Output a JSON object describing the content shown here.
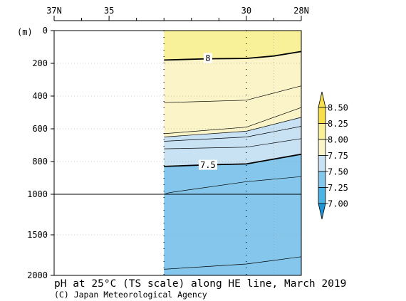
{
  "chart_data": {
    "type": "heatmap",
    "title": "pH at 25°C (TS scale) along HE line, March 2019",
    "credit": "(C) Japan Meteorological Agency",
    "ylabel": "(m)",
    "x_ticks": [
      {
        "lat": 37,
        "label": "37N"
      },
      {
        "lat": 35,
        "label": "35"
      },
      {
        "lat": 30,
        "label": "30"
      },
      {
        "lat": 28,
        "label": "28N"
      }
    ],
    "xlim": [
      37,
      28
    ],
    "y_ticks": [
      {
        "depth": 0,
        "label": "0"
      },
      {
        "depth": 200,
        "label": "200"
      },
      {
        "depth": 400,
        "label": "400"
      },
      {
        "depth": 600,
        "label": "600"
      },
      {
        "depth": 800,
        "label": "800"
      },
      {
        "depth": 1000,
        "label": "1000"
      },
      {
        "depth": 1500,
        "label": "1500"
      },
      {
        "depth": 2000,
        "label": "2000"
      }
    ],
    "ylim": [
      0,
      2000
    ],
    "y_scale": "piecewise linear: 0-1000 m upper section, 1000-2000 m compressed lower section",
    "data_lat_range": [
      33,
      28
    ],
    "station_lats": [
      33,
      30
    ],
    "colorbar": {
      "levels": [
        "8.50",
        "8.25",
        "8.00",
        "7.75",
        "7.50",
        "7.25",
        "7.00"
      ],
      "colors": {
        "above_8.25": "#f6df4a",
        "8.00_8.25": "#f9f09a",
        "7.75_8.00": "#fbf4c8",
        "7.50_7.75": "#c8e2f4",
        "7.25_7.50": "#85c7ec",
        "7.00_7.25": "#4cb3e6",
        "below_7.00": "#1f95d6"
      }
    },
    "contour_labels": [
      {
        "text": "8",
        "value": 8.0,
        "lat": 31.4,
        "depth": 168
      },
      {
        "text": "7.5",
        "value": 7.5,
        "lat": 31.4,
        "depth": 820
      }
    ],
    "contours": [
      {
        "value": 8.0,
        "bold": true,
        "points": [
          [
            33,
            180
          ],
          [
            31.4,
            172
          ],
          [
            30,
            170
          ],
          [
            29,
            155
          ],
          [
            28,
            128
          ]
        ]
      },
      {
        "value": 7.95,
        "bold": false,
        "points": [
          [
            33,
            440
          ],
          [
            30,
            425
          ],
          [
            28,
            338
          ]
        ]
      },
      {
        "value": 7.9,
        "bold": false,
        "points": [
          [
            33,
            630
          ],
          [
            30,
            590
          ],
          [
            28,
            470
          ]
        ]
      },
      {
        "value": 7.75,
        "bold": false,
        "points": [
          [
            33,
            650
          ],
          [
            30,
            615
          ],
          [
            28,
            530
          ]
        ]
      },
      {
        "value": 7.7,
        "bold": false,
        "points": [
          [
            33,
            676
          ],
          [
            30,
            650
          ],
          [
            28,
            585
          ]
        ]
      },
      {
        "value": 7.6,
        "bold": false,
        "points": [
          [
            33,
            722
          ],
          [
            30,
            712
          ],
          [
            28,
            660
          ]
        ]
      },
      {
        "value": 7.5,
        "bold": true,
        "points": [
          [
            33,
            830
          ],
          [
            31.4,
            820
          ],
          [
            30,
            815
          ],
          [
            28,
            755
          ]
        ]
      },
      {
        "value": 7.45,
        "bold": false,
        "points": [
          [
            33,
            1002
          ],
          [
            32.8,
            990
          ],
          [
            30,
            923
          ],
          [
            28,
            892
          ]
        ]
      },
      {
        "value": 7.4,
        "bold": false,
        "points": [
          [
            33,
            1925
          ],
          [
            30,
            1860
          ],
          [
            28,
            1770
          ]
        ]
      }
    ],
    "grid": true
  }
}
